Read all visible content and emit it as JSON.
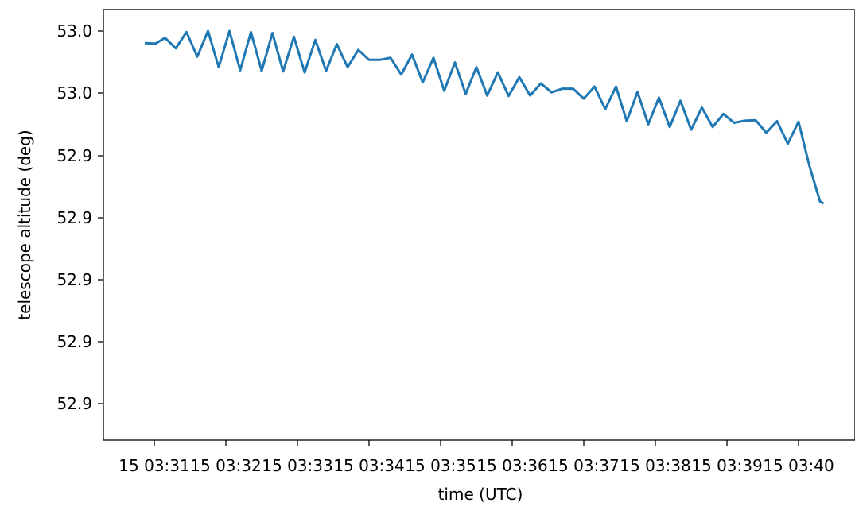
{
  "chart_data": {
    "type": "line",
    "title": "",
    "xlabel": "time (UTC)",
    "ylabel": "telescope altitude (deg)",
    "grid": false,
    "line_color": "#1f77b4",
    "x_tick_labels": [
      "15 03:31",
      "15 03:32",
      "15 03:33",
      "15 03:34",
      "15 03:35",
      "15 03:36",
      "15 03:37",
      "15 03:38",
      "15 03:39",
      "15 03:40"
    ],
    "y_tick_labels": [
      "52.9",
      "52.9",
      "52.9",
      "52.9",
      "52.9",
      "53.0",
      "53.0"
    ],
    "series": [
      {
        "x": [
          "03:30:52",
          "03:31:01",
          "03:31:09",
          "03:31:18",
          "03:31:27",
          "03:31:36",
          "03:31:45",
          "03:31:54",
          "03:32:03",
          "03:32:12",
          "03:32:21",
          "03:32:30",
          "03:32:39",
          "03:32:48",
          "03:32:57",
          "03:33:06",
          "03:33:15",
          "03:33:24",
          "03:33:33",
          "03:33:42",
          "03:33:51",
          "03:34:00",
          "03:34:09",
          "03:34:18",
          "03:34:27",
          "03:34:36",
          "03:34:45",
          "03:34:54",
          "03:35:03",
          "03:35:12",
          "03:35:21",
          "03:35:30",
          "03:35:39",
          "03:35:48",
          "03:35:57",
          "03:36:06",
          "03:36:15",
          "03:36:24",
          "03:36:33",
          "03:36:42",
          "03:36:51",
          "03:37:00",
          "03:37:09",
          "03:37:18",
          "03:37:27",
          "03:37:36",
          "03:37:45",
          "03:37:54",
          "03:38:03",
          "03:38:12",
          "03:38:21",
          "03:38:30",
          "03:38:39",
          "03:38:48",
          "03:38:57",
          "03:39:06",
          "03:39:15",
          "03:39:24",
          "03:39:33",
          "03:39:42",
          "03:39:51",
          "03:40:00",
          "03:40:09",
          "03:40:18",
          "03:40:21"
        ],
        "y": [
          52.9983,
          52.9982,
          52.9993,
          52.9973,
          53.0004,
          52.9957,
          53.0006,
          52.9937,
          53.0006,
          52.9931,
          53.0004,
          52.993,
          53.0002,
          52.9929,
          52.9995,
          52.9927,
          52.9989,
          52.993,
          52.9981,
          52.9937,
          52.997,
          52.9951,
          52.9951,
          52.9955,
          52.9923,
          52.9961,
          52.9908,
          52.9955,
          52.9892,
          52.9946,
          52.9886,
          52.9937,
          52.9883,
          52.9927,
          52.9882,
          52.9918,
          52.9883,
          52.9906,
          52.9889,
          52.9896,
          52.9896,
          52.9877,
          52.99,
          52.9857,
          52.99,
          52.9834,
          52.989,
          52.9828,
          52.9879,
          52.9823,
          52.9873,
          52.9818,
          52.986,
          52.9823,
          52.9848,
          52.9831,
          52.9835,
          52.9836,
          52.9812,
          52.9834,
          52.9791,
          52.9833,
          52.975,
          52.9681,
          52.9677
        ]
      }
    ]
  }
}
